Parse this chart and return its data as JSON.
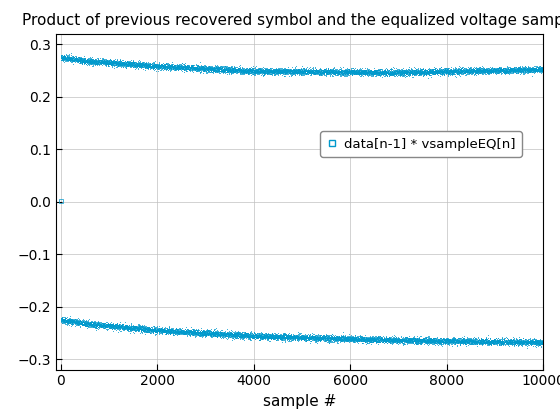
{
  "title": "Product of previous recovered symbol and the equalized voltage sample",
  "xlabel": "sample #",
  "ylabel": "",
  "xlim": [
    -100,
    10000
  ],
  "ylim": [
    -0.32,
    0.32
  ],
  "yticks": [
    -0.3,
    -0.2,
    -0.1,
    0,
    0.1,
    0.2,
    0.3
  ],
  "xticks": [
    0,
    2000,
    4000,
    6000,
    8000,
    10000
  ],
  "n_samples": 10000,
  "upper_keypoints_x": [
    0,
    500,
    2000,
    4000,
    7000,
    10000
  ],
  "upper_keypoints_y": [
    0.275,
    0.268,
    0.258,
    0.249,
    0.246,
    0.252
  ],
  "lower_keypoints_x": [
    0,
    500,
    2000,
    4000,
    7000,
    10000
  ],
  "lower_keypoints_y": [
    -0.225,
    -0.232,
    -0.245,
    -0.256,
    -0.264,
    -0.268
  ],
  "noise_std": 0.003,
  "color": "#0099CC",
  "marker": "s",
  "markersize": 0.5,
  "legend_label": "data[n-1] * vsampleEQ[n]",
  "background_color": "#ffffff",
  "grid_color": "#c0c0c0",
  "title_fontsize": 11,
  "label_fontsize": 11,
  "tick_fontsize": 10,
  "legend_fontsize": 9.5
}
